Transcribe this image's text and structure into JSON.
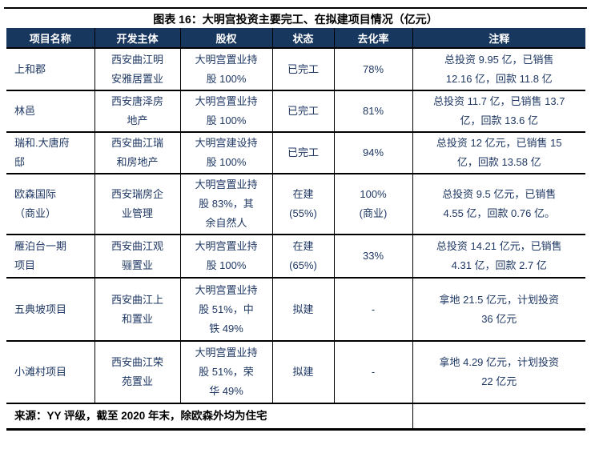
{
  "title": "图表 16：大明宫投资主要完工、在拟建项目情况（亿元）",
  "colors": {
    "page_bg": "#FFFFFF",
    "header_bg": "#17375E",
    "header_text": "#FFFFFF",
    "body_text": "#1F3864",
    "title_text": "#000000",
    "border": "#000000"
  },
  "table": {
    "columns": [
      {
        "label": "项目名称"
      },
      {
        "label": "开发主体"
      },
      {
        "label": "股权"
      },
      {
        "label": "状态"
      },
      {
        "label": "去化率"
      },
      {
        "label": "注释"
      }
    ],
    "rows": [
      {
        "name": "上和郡",
        "developer": "西安曲江明\n安雅居置业",
        "equity": "大明宫置业持\n股 100%",
        "status": "已完工",
        "rate": "78%",
        "note": "总投资 9.95 亿，已销售\n12.16 亿，回款 11.8 亿"
      },
      {
        "name": "林邑",
        "developer": "西安唐泽房\n地产",
        "equity": "大明宫置业持\n股 100%",
        "status": "已完工",
        "rate": "81%",
        "note": "总投资 11.7 亿，已销售 13.7\n亿，回款 13.6 亿"
      },
      {
        "name": "瑞和.大唐府\n邸",
        "developer": "西安曲江瑞\n和房地产",
        "equity": "大明宫建设持\n股 100%",
        "status": "已完工",
        "rate": "94%",
        "note": "总投资 12 亿元，已销售 15\n亿，回款 13.58 亿"
      },
      {
        "name": "欧森国际\n（商业）",
        "developer": "西安瑞房企\n业管理",
        "equity": "大明宫置业持\n股 83%，其\n余自然人",
        "status": "在建\n(55%)",
        "rate": "100%\n(商业)",
        "note": "总投资 9.5 亿元，已销售\n4.55 亿，回款 0.76 亿。"
      },
      {
        "name": "雁泊台一期\n项目",
        "developer": "西安曲江观\n骊置业",
        "equity": "大明宫置业持\n股 100%",
        "status": "在建\n(65%)",
        "rate": "33%",
        "note": "总投资 14.21 亿元，已销售\n4.31 亿，回款 2.7 亿"
      },
      {
        "name": "五典坡项目",
        "developer": "西安曲江上\n和置业",
        "equity": "大明宫置业持\n股 51%，中\n铁 49%",
        "status": "拟建",
        "rate": "-",
        "note": "拿地 21.5 亿元，计划投资\n36 亿元"
      },
      {
        "name": "小滩村项目",
        "developer": "西安曲江荣\n苑置业",
        "equity": "大明宫置业持\n股 51%，荣\n华 49%",
        "status": "拟建",
        "rate": "-",
        "note": "拿地 4.29 亿元，计划投资\n22 亿元"
      }
    ]
  },
  "footer": {
    "source": "来源：YY 评级，截至 2020 年末，除欧森外均为住宅"
  }
}
